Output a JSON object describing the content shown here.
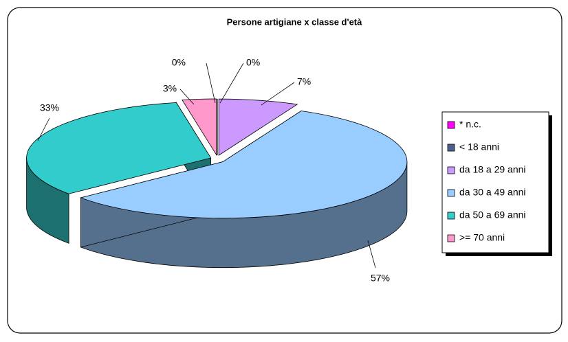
{
  "chart_data": {
    "type": "pie",
    "title": "Persone artigiane x classe d'età",
    "categories": [
      "* n.c.",
      "< 18 anni",
      "da 18 a 29 anni",
      "da 30 a 49 anni",
      "da 50 a 69 anni",
      ">= 70 anni"
    ],
    "values": [
      0,
      0,
      7,
      57,
      33,
      3
    ],
    "value_labels": [
      "0%",
      "0%",
      "7%",
      "57%",
      "33%",
      "3%"
    ],
    "colors": [
      "#ff00ff",
      "#4d5f8a",
      "#cc99ff",
      "#99ccff",
      "#33cccc",
      "#ff99cc"
    ],
    "legend": "right"
  }
}
